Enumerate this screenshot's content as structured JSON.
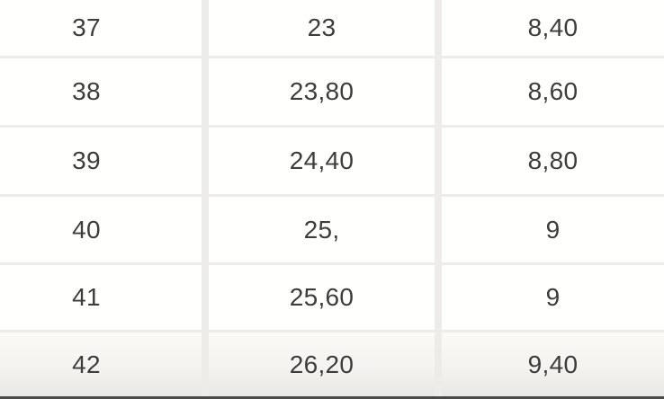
{
  "table": {
    "rows": [
      {
        "cells": [
          "37",
          "23",
          "8,40"
        ]
      },
      {
        "cells": [
          "38",
          "23,80",
          "8,60"
        ]
      },
      {
        "cells": [
          "39",
          "24,40",
          "8,80"
        ]
      },
      {
        "cells": [
          "40",
          "25,",
          "9"
        ]
      },
      {
        "cells": [
          "41",
          "25,60",
          "9"
        ]
      },
      {
        "cells": [
          "42",
          "26,20",
          "9,40"
        ]
      }
    ]
  },
  "colors": {
    "cell_background": "#fffffe",
    "separator": "#eeece8",
    "text": "#3d3d3d",
    "last_row_top": "#fbfaf7",
    "last_row_bottom": "#e9e8e5",
    "bottom_bar": "#4a4a48"
  }
}
